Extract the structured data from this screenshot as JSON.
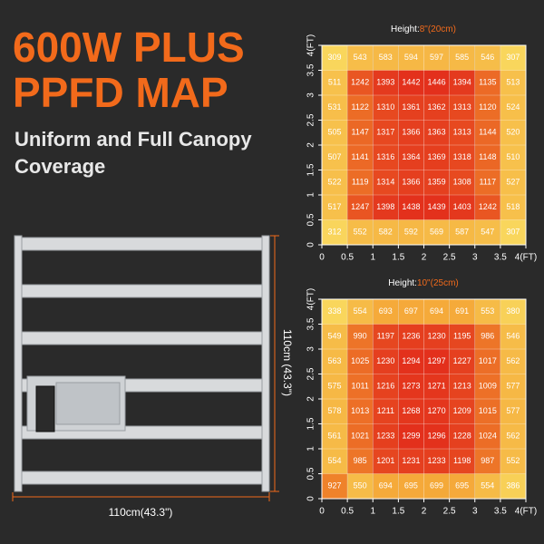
{
  "product": {
    "headline": [
      "600W PLUS",
      "PPFD MAP"
    ],
    "subheadline": [
      "Uniform and Full Canopy",
      "Coverage"
    ],
    "dimension_height": "110cm (43.3\")",
    "dimension_width": "110cm(43.3\")"
  },
  "chart_data": [
    {
      "type": "heatmap",
      "title": "Height:",
      "title_value": "8\"(20cm)",
      "xlim": [
        0,
        4
      ],
      "ylim": [
        0,
        4
      ],
      "xticks": [
        0,
        0.5,
        1,
        1.5,
        2,
        2.5,
        3,
        3.5,
        {
          "value": 4,
          "label": "4(FT)"
        }
      ],
      "yticks": [
        0,
        0.5,
        1,
        1.5,
        2,
        2.5,
        3,
        3.5,
        {
          "value": 4,
          "label": "4(FT)"
        }
      ],
      "colormap": [
        "#f9d65c",
        "#f39a2e",
        "#e3301c"
      ],
      "z": [
        [
          309,
          543,
          583,
          594,
          597,
          585,
          546,
          307
        ],
        [
          511,
          1242,
          1393,
          1442,
          1446,
          1394,
          1135,
          513
        ],
        [
          531,
          1122,
          1310,
          1361,
          1362,
          1313,
          1120,
          524
        ],
        [
          505,
          1147,
          1317,
          1366,
          1363,
          1313,
          1144,
          520
        ],
        [
          507,
          1141,
          1316,
          1364,
          1369,
          1318,
          1148,
          510
        ],
        [
          522,
          1119,
          1314,
          1366,
          1359,
          1308,
          1117,
          527
        ],
        [
          517,
          1247,
          1398,
          1438,
          1439,
          1403,
          1242,
          518
        ],
        [
          312,
          552,
          582,
          592,
          569,
          587,
          547,
          307
        ]
      ]
    },
    {
      "type": "heatmap",
      "title": "Height:",
      "title_value": "10\"(25cm)",
      "xlim": [
        0,
        4
      ],
      "ylim": [
        0,
        4
      ],
      "xticks": [
        0,
        0.5,
        1,
        1.5,
        2,
        2.5,
        3,
        3.5,
        {
          "value": 4,
          "label": "4(FT)"
        }
      ],
      "yticks": [
        0,
        0.5,
        1,
        1.5,
        2,
        2.5,
        3,
        3.5,
        {
          "value": 4,
          "label": "4(FT)"
        }
      ],
      "colormap": [
        "#f9d65c",
        "#f39a2e",
        "#e3301c"
      ],
      "z": [
        [
          338,
          554,
          693,
          697,
          694,
          691,
          553,
          380
        ],
        [
          549,
          990,
          1197,
          1236,
          1230,
          1195,
          986,
          546
        ],
        [
          563,
          1025,
          1230,
          1294,
          1297,
          1227,
          1017,
          562
        ],
        [
          575,
          1011,
          1216,
          1273,
          1271,
          1213,
          1009,
          577
        ],
        [
          578,
          1013,
          1211,
          1268,
          1270,
          1209,
          1015,
          577
        ],
        [
          561,
          1021,
          1233,
          1299,
          1296,
          1228,
          1024,
          562
        ],
        [
          554,
          985,
          1201,
          1231,
          1233,
          1198,
          987,
          552
        ],
        [
          927,
          550,
          694,
          695,
          699,
          695,
          554,
          386
        ]
      ]
    }
  ]
}
